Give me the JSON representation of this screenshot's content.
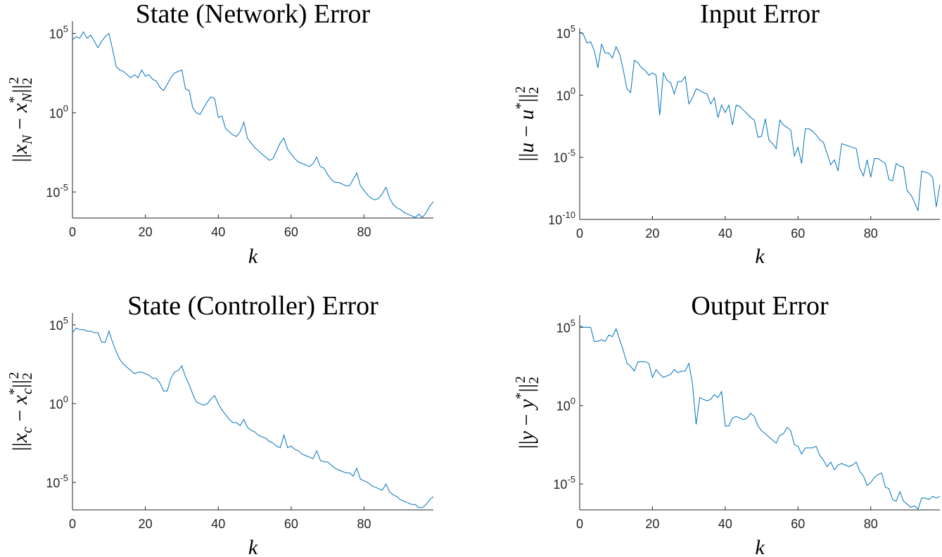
{
  "chart_data": [
    {
      "type": "line",
      "title": "State (Network) Error",
      "xlabel": "k",
      "ylabel": [
        "||",
        "x",
        "N",
        " − ",
        "x",
        "*",
        "N",
        "||",
        "2",
        "2"
      ],
      "log_y": true,
      "color": "#0072bd",
      "xlim": [
        0,
        99
      ],
      "xticks": [
        0,
        20,
        40,
        60,
        80
      ],
      "ylim": [
        2.3e-07,
        600000.0
      ],
      "yticks": [
        {
          "value": 1e-05,
          "label": "10^-5"
        },
        {
          "value": 1,
          "label": "10^0"
        },
        {
          "value": 100000.0,
          "label": "10^5"
        }
      ],
      "x": [
        0,
        1,
        2,
        3,
        4,
        5,
        6,
        7,
        8,
        9,
        10,
        11,
        12,
        13,
        14,
        15,
        16,
        17,
        18,
        19,
        20,
        21,
        22,
        23,
        24,
        25,
        26,
        27,
        28,
        29,
        30,
        31,
        32,
        33,
        34,
        35,
        36,
        37,
        38,
        39,
        40,
        41,
        42,
        43,
        44,
        45,
        46,
        47,
        48,
        49,
        50,
        51,
        52,
        53,
        54,
        55,
        56,
        57,
        58,
        59,
        60,
        61,
        62,
        63,
        64,
        65,
        66,
        67,
        68,
        69,
        70,
        71,
        72,
        73,
        74,
        75,
        76,
        77,
        78,
        79,
        80,
        81,
        82,
        83,
        84,
        85,
        86,
        87,
        88,
        89,
        90,
        91,
        92,
        93,
        94,
        95,
        96,
        97,
        98,
        99
      ],
      "values": [
        40000.0,
        63000.0,
        50000.0,
        126000.0,
        50000.0,
        79000.0,
        32000.0,
        12600.0,
        32000.0,
        63000.0,
        100000.0,
        10000.0,
        790.0,
        500.0,
        400.0,
        250.0,
        160.0,
        250.0,
        160.0,
        500.0,
        200.0,
        250.0,
        126.0,
        100.0,
        40.0,
        25.0,
        63.0,
        160.0,
        320.0,
        400.0,
        500.0,
        32.0,
        25.0,
        2,
        1,
        0.79,
        2,
        5,
        10,
        7.9,
        0.5,
        0.63,
        0.1,
        0.063,
        0.04,
        0.032,
        0.063,
        0.25,
        0.025,
        0.0126,
        0.0063,
        0.004,
        0.0025,
        0.0016,
        0.001,
        0.00126,
        0.004,
        0.0126,
        0.025,
        0.005,
        0.0025,
        0.00126,
        0.00079,
        0.00063,
        0.0005,
        0.0004,
        0.00063,
        0.0016,
        0.0004,
        0.00032,
        0.000126,
        6.3e-05,
        4e-05,
        4e-05,
        3.2e-05,
        2.5e-05,
        2.5e-05,
        6.3e-05,
        0.00016,
        2.5e-05,
        1.26e-05,
        6.3e-06,
        4e-06,
        3.2e-06,
        4e-06,
        7.9e-06,
        2e-05,
        4e-06,
        1.6e-06,
        1e-06,
        7.9e-07,
        5e-07,
        4e-07,
        3.2e-07,
        2.5e-07,
        4e-07,
        2.5e-07,
        5e-07,
        1.26e-06,
        2.5e-06
      ]
    },
    {
      "type": "line",
      "title": "Input Error",
      "xlabel": "k",
      "ylabel": [
        "||",
        "u",
        " − ",
        "u",
        "*",
        "||",
        "2",
        "2"
      ],
      "log_y": true,
      "color": "#0072bd",
      "xlim": [
        0,
        99
      ],
      "xticks": [
        0,
        20,
        40,
        60,
        80
      ],
      "ylim": [
        1e-10,
        250000.0
      ],
      "yticks": [
        {
          "value": 1e-10,
          "label": "10^-10"
        },
        {
          "value": 1e-05,
          "label": "10^-5"
        },
        {
          "value": 1,
          "label": "10^0"
        },
        {
          "value": 100000.0,
          "label": "10^5"
        }
      ],
      "x": [
        0,
        1,
        2,
        3,
        4,
        5,
        6,
        7,
        8,
        9,
        10,
        11,
        12,
        13,
        14,
        15,
        16,
        17,
        18,
        19,
        20,
        21,
        22,
        23,
        24,
        25,
        26,
        27,
        28,
        29,
        30,
        31,
        32,
        33,
        34,
        35,
        36,
        37,
        38,
        39,
        40,
        41,
        42,
        43,
        44,
        45,
        46,
        47,
        48,
        49,
        50,
        51,
        52,
        53,
        54,
        55,
        56,
        57,
        58,
        59,
        60,
        61,
        62,
        63,
        64,
        65,
        66,
        67,
        68,
        69,
        70,
        71,
        72,
        73,
        74,
        75,
        76,
        77,
        78,
        79,
        80,
        81,
        82,
        83,
        84,
        85,
        86,
        87,
        88,
        89,
        90,
        91,
        92,
        93,
        94,
        95,
        96,
        97,
        98,
        99
      ],
      "values": [
        126000.0,
        79000.0,
        16000.0,
        20000.0,
        4000.0,
        160.0,
        12600.0,
        2500.0,
        2500.0,
        1000.0,
        7900.0,
        2000.0,
        100.0,
        3.2,
        1.6,
        630.0,
        400.0,
        160.0,
        100.0,
        40,
        63,
        40,
        0.025,
        63,
        16,
        10,
        1.26,
        12.6,
        12.6,
        32,
        0.2,
        0.63,
        3.2,
        2.5,
        1.6,
        1.26,
        0.2,
        0.63,
        0.016,
        0.16,
        0.04,
        0.16,
        0.004,
        0.16,
        0.126,
        0.063,
        0.032,
        0.016,
        0.01,
        0.0004,
        0.0005,
        0.0126,
        0.00025,
        0.000126,
        5e-05,
        0.01,
        0.004,
        0.0025,
        0.0016,
        1.26e-05,
        6.3e-05,
        3.2e-06,
        0.002,
        0.002,
        0.00126,
        0.00063,
        0.00025,
        0.00016,
        2e-05,
        2.5e-06,
        6.3e-06,
        7.9e-07,
        0.000126,
        0.0001,
        7.9e-05,
        6.3e-05,
        5e-05,
        1.26e-06,
        3.2e-07,
        6.3e-06,
        2.5e-07,
        7.9e-06,
        7.9e-06,
        5e-06,
        3.2e-06,
        1.6e-07,
        1.26e-07,
        3.2e-06,
        2e-06,
        1.6e-06,
        2e-08,
        1e-08,
        2.5e-09,
        5e-10,
        7.9e-07,
        6.3e-07,
        5e-07,
        2.5e-07,
        1e-09,
        6.3e-08
      ]
    },
    {
      "type": "line",
      "title": "State (Controller) Error",
      "xlabel": "k",
      "ylabel": [
        "||",
        "x",
        "c",
        " − ",
        "x",
        "*",
        "c",
        "||",
        "2",
        "2"
      ],
      "log_y": true,
      "color": "#0072bd",
      "xlim": [
        0,
        99
      ],
      "xticks": [
        0,
        20,
        40,
        60,
        80
      ],
      "ylim": [
        1.8e-07,
        570000.0
      ],
      "yticks": [
        {
          "value": 1e-05,
          "label": "10^-5"
        },
        {
          "value": 1,
          "label": "10^0"
        },
        {
          "value": 100000.0,
          "label": "10^5"
        }
      ],
      "x": [
        0,
        1,
        2,
        3,
        4,
        5,
        6,
        7,
        8,
        9,
        10,
        11,
        12,
        13,
        14,
        15,
        16,
        17,
        18,
        19,
        20,
        21,
        22,
        23,
        24,
        25,
        26,
        27,
        28,
        29,
        30,
        31,
        32,
        33,
        34,
        35,
        36,
        37,
        38,
        39,
        40,
        41,
        42,
        43,
        44,
        45,
        46,
        47,
        48,
        49,
        50,
        51,
        52,
        53,
        54,
        55,
        56,
        57,
        58,
        59,
        60,
        61,
        62,
        63,
        64,
        65,
        66,
        67,
        68,
        69,
        70,
        71,
        72,
        73,
        74,
        75,
        76,
        77,
        78,
        79,
        80,
        81,
        82,
        83,
        84,
        85,
        86,
        87,
        88,
        89,
        90,
        91,
        92,
        93,
        94,
        95,
        96,
        97,
        98,
        99
      ],
      "values": [
        32000.0,
        63000.0,
        50000.0,
        50000.0,
        40000.0,
        40000.0,
        32000.0,
        32000.0,
        7900.0,
        7900.0,
        40000.0,
        7900.0,
        2000.0,
        630.0,
        320.0,
        200.0,
        126.0,
        79,
        100,
        100,
        79,
        63,
        40,
        40,
        20,
        6.3,
        6.3,
        40,
        100,
        126,
        250,
        50,
        16,
        4,
        1.26,
        1,
        0.79,
        1,
        2,
        3.2,
        1,
        0.4,
        0.2,
        0.1,
        0.063,
        0.063,
        0.04,
        0.1,
        0.032,
        0.02,
        0.016,
        0.01,
        0.0079,
        0.0063,
        0.004,
        0.0032,
        0.002,
        0.0016,
        0.01,
        0.0016,
        0.002,
        0.00126,
        0.001,
        0.00063,
        0.0005,
        0.0004,
        0.00032,
        0.001,
        0.00025,
        0.0002,
        0.0002,
        0.000126,
        7.9e-05,
        6.3e-05,
        5e-05,
        4e-05,
        4e-05,
        2.5e-05,
        7.9e-05,
        1.6e-05,
        1.26e-05,
        1e-05,
        6.3e-06,
        5e-06,
        4e-06,
        3.2e-06,
        7.9e-06,
        2.5e-06,
        1.6e-06,
        1.26e-06,
        7.9e-07,
        6.3e-07,
        5e-07,
        4e-07,
        4e-07,
        2.5e-07,
        2.5e-07,
        4e-07,
        7.9e-07,
        1.26e-06
      ]
    },
    {
      "type": "line",
      "title": "Output Error",
      "xlabel": "k",
      "ylabel": [
        "||",
        "y",
        " − ",
        "y",
        "*",
        "||",
        "2",
        "2"
      ],
      "log_y": true,
      "color": "#0072bd",
      "xlim": [
        0,
        99
      ],
      "xticks": [
        0,
        20,
        40,
        60,
        80
      ],
      "ylim": [
        2.2e-07,
        600000.0
      ],
      "yticks": [
        {
          "value": 1e-05,
          "label": "10^-5"
        },
        {
          "value": 1,
          "label": "10^0"
        },
        {
          "value": 100000.0,
          "label": "10^5"
        }
      ],
      "x": [
        0,
        1,
        2,
        3,
        4,
        5,
        6,
        7,
        8,
        9,
        10,
        11,
        12,
        13,
        14,
        15,
        16,
        17,
        18,
        19,
        20,
        21,
        22,
        23,
        24,
        25,
        26,
        27,
        28,
        29,
        30,
        31,
        32,
        33,
        34,
        35,
        36,
        37,
        38,
        39,
        40,
        41,
        42,
        43,
        44,
        45,
        46,
        47,
        48,
        49,
        50,
        51,
        52,
        53,
        54,
        55,
        56,
        57,
        58,
        59,
        60,
        61,
        62,
        63,
        64,
        65,
        66,
        67,
        68,
        69,
        70,
        71,
        72,
        73,
        74,
        75,
        76,
        77,
        78,
        79,
        80,
        81,
        82,
        83,
        84,
        85,
        86,
        87,
        88,
        89,
        90,
        91,
        92,
        93,
        94,
        95,
        96,
        97,
        98,
        99
      ],
      "values": [
        126000.0,
        100000.0,
        100000.0,
        100000.0,
        12600.0,
        12600.0,
        16000.0,
        12600.0,
        32000.0,
        25000.0,
        79000.0,
        16000.0,
        3200.0,
        500.0,
        320.0,
        160.0,
        630.0,
        630.0,
        630.0,
        500.0,
        63,
        200.0,
        100.0,
        63,
        79,
        100.0,
        200.0,
        126.0,
        160.0,
        160.0,
        500.0,
        25,
        0.063,
        3.2,
        2.5,
        2,
        2.5,
        5,
        3.2,
        7.9,
        0.05,
        0.05,
        0.16,
        0.2,
        0.16,
        0.126,
        0.16,
        0.32,
        0.2,
        0.05,
        0.025,
        0.016,
        0.01,
        0.0063,
        0.004,
        0.0126,
        0.016,
        0.04,
        0.025,
        0.0032,
        0.0025,
        0.00079,
        0.002,
        0.002,
        0.002,
        0.0025,
        0.00063,
        0.00032,
        0.000126,
        0.00025,
        7.9e-05,
        0.00016,
        0.0002,
        0.00016,
        0.000126,
        0.00016,
        0.00025,
        6.3e-05,
        3.2e-05,
        7.9e-06,
        1.26e-05,
        2.5e-05,
        4e-05,
        5e-05,
        6.3e-06,
        5e-06,
        1e-06,
        7.9e-07,
        3.2e-06,
        7.9e-07,
        5e-07,
        3.2e-07,
        4e-07,
        2.5e-07,
        1.26e-06,
        1.26e-06,
        1e-06,
        1.6e-06,
        1.26e-06,
        1.6e-06
      ]
    }
  ]
}
